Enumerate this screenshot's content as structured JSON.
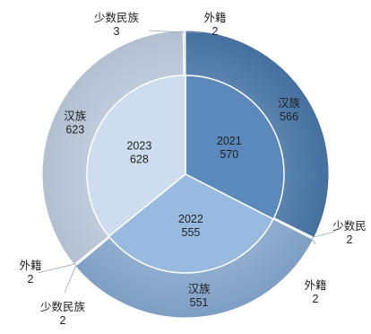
{
  "chart_data": {
    "type": "sunburst",
    "title": "",
    "colors": {
      "2021": "#4d7fb5",
      "2022": "#8fb4de",
      "2023": "#cad9ee"
    },
    "inner_ring": [
      {
        "name": "2021",
        "value": 570
      },
      {
        "name": "2022",
        "value": 555
      },
      {
        "name": "2023",
        "value": 628
      }
    ],
    "outer_ring": [
      {
        "parent": "2021",
        "name": "汉族",
        "value": 566
      },
      {
        "parent": "2021",
        "name": "少数民",
        "value": 2
      },
      {
        "parent": "2021",
        "name": "外籍",
        "value": 2
      },
      {
        "parent": "2022",
        "name": "汉族",
        "value": 551
      },
      {
        "parent": "2022",
        "name": "少数民族",
        "value": 2
      },
      {
        "parent": "2022",
        "name": "外籍",
        "value": 2
      },
      {
        "parent": "2023",
        "name": "汉族",
        "value": 623
      },
      {
        "parent": "2023",
        "name": "少数民族",
        "value": 3
      },
      {
        "parent": "2023",
        "name": "外籍",
        "value": 2
      }
    ]
  }
}
